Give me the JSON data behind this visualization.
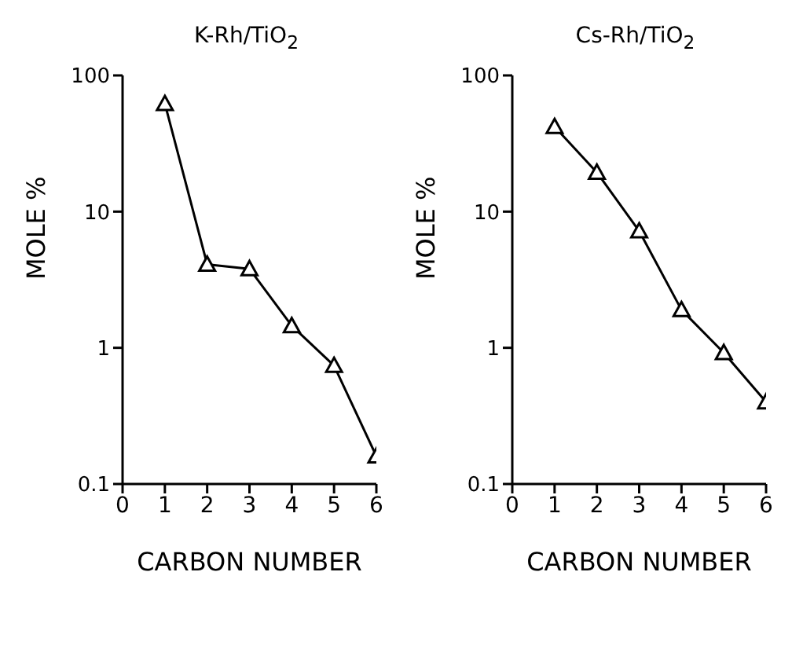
{
  "chart_data": [
    {
      "type": "line",
      "title": "K-Rh/TiO$_{2}$",
      "xlabel": "CARBON NUMBER",
      "ylabel": "MOLE %",
      "x": [
        1,
        2,
        3,
        4,
        5,
        6
      ],
      "series": [
        {
          "color": "#000000",
          "values": [
            62,
            4.1,
            3.8,
            1.45,
            0.74,
            0.16
          ]
        }
      ],
      "xlim": [
        0,
        6
      ],
      "xticks": [
        0,
        1,
        2,
        3,
        4,
        5,
        6
      ],
      "ylim": [
        0.1,
        100
      ],
      "yticks": [
        0.1,
        1,
        10,
        100
      ],
      "log": "y",
      "marker": "triangle"
    },
    {
      "type": "line",
      "title": "Cs-Rh/TiO$_{2}$",
      "xlabel": "CARBON NUMBER",
      "ylabel": "MOLE %",
      "x": [
        1,
        2,
        3,
        4,
        5,
        6
      ],
      "series": [
        {
          "color": "#000000",
          "values": [
            42,
            19.4,
            7.2,
            1.9,
            0.92,
            0.4
          ]
        }
      ],
      "xlim": [
        0,
        6
      ],
      "xticks": [
        0,
        1,
        2,
        3,
        4,
        5,
        6
      ],
      "ylim": [
        0.1,
        100
      ],
      "yticks": [
        0.1,
        1,
        10,
        100
      ],
      "log": "y",
      "marker": "triangle"
    }
  ]
}
